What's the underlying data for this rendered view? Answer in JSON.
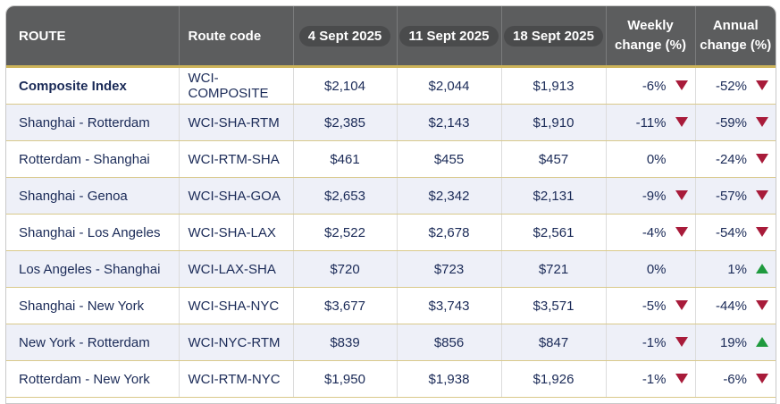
{
  "header": {
    "route": "ROUTE",
    "route_code": "Route code",
    "date1": "4 Sept 2025",
    "date2": "11 Sept 2025",
    "date3": "18 Sept 2025",
    "weekly_l1": "Weekly",
    "weekly_l2": "change (%)",
    "annual_l1": "Annual",
    "annual_l2": "change (%)"
  },
  "colors": {
    "down": "#a81b3a",
    "up": "#1f9a3e",
    "header_bg": "#5c5d5e",
    "accent": "#cdb45a"
  },
  "rows": [
    {
      "route": "Composite Index",
      "code": "WCI-COMPOSITE",
      "d1": "$2,104",
      "d2": "$2,044",
      "d3": "$1,913",
      "weekly": "-6%",
      "weekly_dir": "down",
      "annual": "-52%",
      "annual_dir": "down"
    },
    {
      "route": "Shanghai - Rotterdam",
      "code": "WCI-SHA-RTM",
      "d1": "$2,385",
      "d2": "$2,143",
      "d3": "$1,910",
      "weekly": "-11%",
      "weekly_dir": "down",
      "annual": "-59%",
      "annual_dir": "down"
    },
    {
      "route": "Rotterdam - Shanghai",
      "code": "WCI-RTM-SHA",
      "d1": "$461",
      "d2": "$455",
      "d3": "$457",
      "weekly": "0%",
      "weekly_dir": "none",
      "annual": "-24%",
      "annual_dir": "down"
    },
    {
      "route": "Shanghai - Genoa",
      "code": "WCI-SHA-GOA",
      "d1": "$2,653",
      "d2": "$2,342",
      "d3": "$2,131",
      "weekly": "-9%",
      "weekly_dir": "down",
      "annual": "-57%",
      "annual_dir": "down"
    },
    {
      "route": "Shanghai - Los Angeles",
      "code": "WCI-SHA-LAX",
      "d1": "$2,522",
      "d2": "$2,678",
      "d3": "$2,561",
      "weekly": "-4%",
      "weekly_dir": "down",
      "annual": "-54%",
      "annual_dir": "down"
    },
    {
      "route": "Los Angeles - Shanghai",
      "code": "WCI-LAX-SHA",
      "d1": "$720",
      "d2": "$723",
      "d3": "$721",
      "weekly": "0%",
      "weekly_dir": "none",
      "annual": "1%",
      "annual_dir": "up"
    },
    {
      "route": "Shanghai - New York",
      "code": "WCI-SHA-NYC",
      "d1": "$3,677",
      "d2": "$3,743",
      "d3": "$3,571",
      "weekly": "-5%",
      "weekly_dir": "down",
      "annual": "-44%",
      "annual_dir": "down"
    },
    {
      "route": "New York - Rotterdam",
      "code": "WCI-NYC-RTM",
      "d1": "$839",
      "d2": "$856",
      "d3": "$847",
      "weekly": "-1%",
      "weekly_dir": "down",
      "annual": "19%",
      "annual_dir": "up"
    },
    {
      "route": "Rotterdam - New York",
      "code": "WCI-RTM-NYC",
      "d1": "$1,950",
      "d2": "$1,938",
      "d3": "$1,926",
      "weekly": "-1%",
      "weekly_dir": "down",
      "annual": "-6%",
      "annual_dir": "down"
    }
  ]
}
